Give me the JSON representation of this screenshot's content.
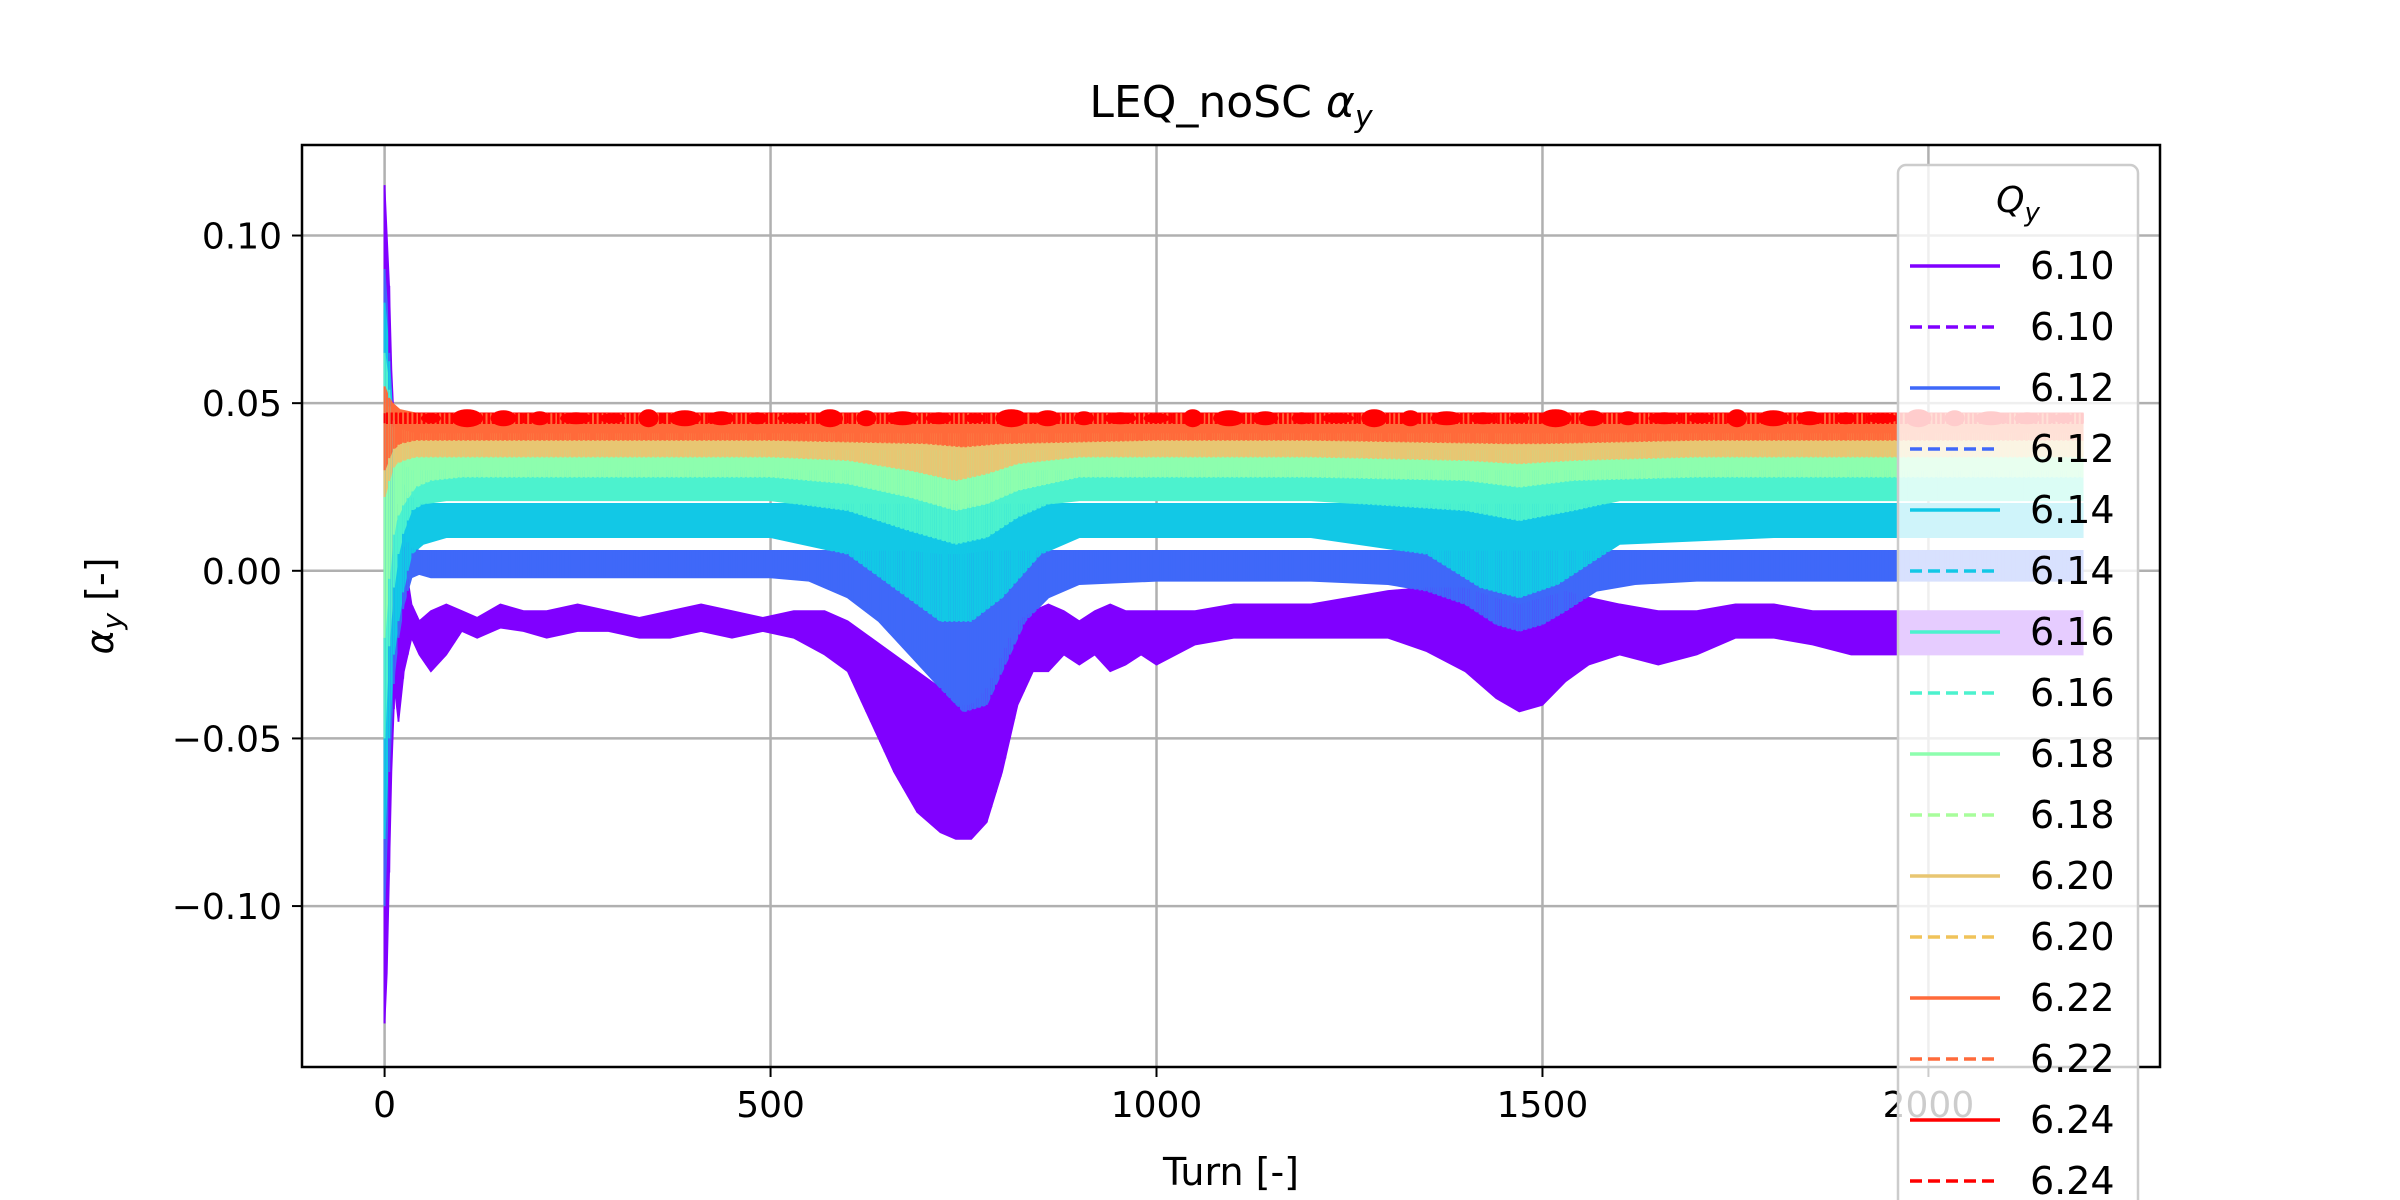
{
  "chart_data": {
    "type": "line",
    "title_text": "LEQ_noSC",
    "title_symbol": "α",
    "title_subscript": "y",
    "xlabel": "Turn [-]",
    "ylabel_symbol": "α",
    "ylabel_subscript": "y",
    "ylabel_unit": "[-]",
    "xlim": [
      -107,
      2300
    ],
    "ylim": [
      -0.148,
      0.127
    ],
    "xticks": [
      0,
      500,
      1000,
      1500,
      2000
    ],
    "xtick_labels": [
      "0",
      "500",
      "1000",
      "1500",
      "2000"
    ],
    "yticks": [
      -0.1,
      -0.05,
      0.0,
      0.05,
      0.1
    ],
    "ytick_labels": [
      "−0.10",
      "−0.05",
      "0.00",
      "0.05",
      "0.10"
    ],
    "grid": true,
    "legend": {
      "title_symbol": "Q",
      "title_subscript": "y",
      "placement": "right",
      "entries": [
        {
          "label": "6.10",
          "color": "#8000ff",
          "dash": false
        },
        {
          "label": "6.10",
          "color": "#8000ff",
          "dash": true
        },
        {
          "label": "6.12",
          "color": "#3f68f9",
          "dash": false
        },
        {
          "label": "6.12",
          "color": "#3f68f9",
          "dash": true
        },
        {
          "label": "6.14",
          "color": "#12c8e6",
          "dash": false
        },
        {
          "label": "6.14",
          "color": "#12c8e6",
          "dash": true
        },
        {
          "label": "6.16",
          "color": "#4cf2ce",
          "dash": false
        },
        {
          "label": "6.16",
          "color": "#4cf2ce",
          "dash": true
        },
        {
          "label": "6.18",
          "color": "#8dfeae",
          "dash": false
        },
        {
          "label": "6.18",
          "color": "#a8fd9c",
          "dash": true
        },
        {
          "label": "6.20",
          "color": "#e8c672",
          "dash": false
        },
        {
          "label": "6.20",
          "color": "#f0c35a",
          "dash": true
        },
        {
          "label": "6.22",
          "color": "#ff6a3a",
          "dash": false
        },
        {
          "label": "6.22",
          "color": "#ff6a3a",
          "dash": true
        },
        {
          "label": "6.24",
          "color": "#ff0000",
          "dash": false
        },
        {
          "label": "6.24",
          "color": "#ff0000",
          "dash": true
        }
      ]
    },
    "series": [
      {
        "name": "6.10",
        "color": "#8000ff",
        "x": [
          0,
          3,
          6,
          9,
          13,
          18,
          25,
          35,
          45,
          60,
          80,
          100,
          120,
          150,
          180,
          210,
          250,
          290,
          330,
          370,
          410,
          450,
          490,
          530,
          570,
          600,
          630,
          660,
          690,
          720,
          740,
          760,
          780,
          800,
          820,
          840,
          860,
          880,
          900,
          920,
          940,
          960,
          980,
          1000,
          1050,
          1100,
          1150,
          1200,
          1250,
          1300,
          1350,
          1400,
          1440,
          1470,
          1500,
          1530,
          1560,
          1600,
          1650,
          1700,
          1750,
          1800,
          1850,
          1900,
          1950,
          2000,
          2050,
          2100,
          2150,
          2200
        ],
        "lower": [
          -0.135,
          -0.12,
          -0.09,
          -0.06,
          -0.035,
          -0.045,
          -0.03,
          -0.02,
          -0.025,
          -0.03,
          -0.025,
          -0.018,
          -0.02,
          -0.017,
          -0.018,
          -0.02,
          -0.018,
          -0.018,
          -0.02,
          -0.02,
          -0.018,
          -0.02,
          -0.018,
          -0.02,
          -0.025,
          -0.03,
          -0.045,
          -0.06,
          -0.072,
          -0.078,
          -0.08,
          -0.08,
          -0.075,
          -0.06,
          -0.04,
          -0.03,
          -0.03,
          -0.025,
          -0.028,
          -0.025,
          -0.03,
          -0.028,
          -0.025,
          -0.028,
          -0.022,
          -0.02,
          -0.02,
          -0.02,
          -0.02,
          -0.02,
          -0.024,
          -0.03,
          -0.038,
          -0.042,
          -0.04,
          -0.033,
          -0.028,
          -0.025,
          -0.028,
          -0.025,
          -0.02,
          -0.02,
          -0.022,
          -0.025,
          -0.025,
          -0.025,
          -0.025,
          -0.025,
          -0.025,
          -0.025
        ],
        "upper": [
          0.115,
          0.1,
          0.085,
          0.06,
          0.04,
          0.02,
          0.005,
          -0.01,
          -0.015,
          -0.012,
          -0.01,
          -0.012,
          -0.014,
          -0.01,
          -0.012,
          -0.012,
          -0.01,
          -0.012,
          -0.014,
          -0.012,
          -0.01,
          -0.012,
          -0.014,
          -0.012,
          -0.012,
          -0.015,
          -0.02,
          -0.025,
          -0.03,
          -0.035,
          -0.04,
          -0.04,
          -0.035,
          -0.025,
          -0.015,
          -0.012,
          -0.01,
          -0.012,
          -0.015,
          -0.012,
          -0.01,
          -0.012,
          -0.012,
          -0.012,
          -0.012,
          -0.01,
          -0.01,
          -0.01,
          -0.008,
          -0.006,
          -0.005,
          -0.005,
          -0.008,
          -0.01,
          -0.008,
          -0.006,
          -0.008,
          -0.01,
          -0.012,
          -0.012,
          -0.01,
          -0.01,
          -0.012,
          -0.012,
          -0.012,
          -0.012,
          -0.012,
          -0.012,
          -0.012,
          -0.012
        ]
      },
      {
        "name": "6.12",
        "color": "#3f68f9",
        "x": [
          0,
          3,
          6,
          9,
          13,
          18,
          25,
          35,
          45,
          60,
          80,
          120,
          200,
          300,
          400,
          500,
          550,
          600,
          640,
          680,
          720,
          750,
          780,
          800,
          830,
          860,
          900,
          1000,
          1100,
          1200,
          1300,
          1350,
          1400,
          1440,
          1470,
          1500,
          1530,
          1570,
          1620,
          1700,
          1800,
          1900,
          2000,
          2100,
          2200
        ],
        "lower": [
          -0.1,
          -0.08,
          -0.06,
          -0.045,
          -0.03,
          -0.02,
          -0.01,
          -0.002,
          -0.001,
          -0.002,
          -0.002,
          -0.002,
          -0.002,
          -0.002,
          -0.002,
          -0.002,
          -0.003,
          -0.008,
          -0.015,
          -0.025,
          -0.035,
          -0.042,
          -0.04,
          -0.03,
          -0.015,
          -0.008,
          -0.004,
          -0.003,
          -0.003,
          -0.003,
          -0.004,
          -0.006,
          -0.01,
          -0.016,
          -0.018,
          -0.016,
          -0.012,
          -0.006,
          -0.004,
          -0.003,
          -0.003,
          -0.003,
          -0.003,
          -0.003,
          -0.003
        ],
        "upper": [
          0.09,
          0.08,
          0.065,
          0.05,
          0.035,
          0.02,
          0.01,
          0.007,
          0.006,
          0.006,
          0.006,
          0.006,
          0.006,
          0.006,
          0.006,
          0.006,
          0.006,
          0.006,
          0.006,
          0.006,
          0.005,
          0.005,
          0.006,
          0.006,
          0.006,
          0.006,
          0.006,
          0.006,
          0.006,
          0.006,
          0.006,
          0.006,
          0.006,
          0.006,
          0.006,
          0.006,
          0.006,
          0.006,
          0.006,
          0.006,
          0.006,
          0.006,
          0.006,
          0.006,
          0.006
        ]
      },
      {
        "name": "6.14",
        "color": "#12c8e6",
        "x": [
          0,
          4,
          8,
          12,
          18,
          25,
          35,
          50,
          80,
          150,
          300,
          500,
          600,
          660,
          720,
          760,
          800,
          850,
          900,
          1000,
          1200,
          1350,
          1420,
          1470,
          1520,
          1600,
          1800,
          2000,
          2200
        ],
        "lower": [
          -0.08,
          -0.06,
          -0.04,
          -0.025,
          -0.015,
          -0.005,
          0.005,
          0.008,
          0.01,
          0.01,
          0.01,
          0.01,
          0.005,
          -0.005,
          -0.015,
          -0.015,
          -0.008,
          0.005,
          0.01,
          0.01,
          0.01,
          0.005,
          -0.005,
          -0.008,
          -0.004,
          0.008,
          0.01,
          0.01,
          0.01
        ],
        "upper": [
          0.08,
          0.07,
          0.055,
          0.04,
          0.03,
          0.025,
          0.022,
          0.02,
          0.02,
          0.02,
          0.02,
          0.02,
          0.02,
          0.02,
          0.02,
          0.02,
          0.02,
          0.02,
          0.02,
          0.02,
          0.02,
          0.02,
          0.02,
          0.02,
          0.02,
          0.02,
          0.02,
          0.02,
          0.02
        ]
      },
      {
        "name": "6.16",
        "color": "#4cf2ce",
        "x": [
          0,
          4,
          8,
          12,
          18,
          25,
          35,
          50,
          80,
          150,
          300,
          500,
          600,
          680,
          740,
          780,
          820,
          860,
          900,
          1000,
          1200,
          1400,
          1470,
          1540,
          1600,
          1800,
          2000,
          2200
        ],
        "lower": [
          -0.05,
          -0.03,
          -0.015,
          -0.005,
          0.005,
          0.012,
          0.018,
          0.02,
          0.021,
          0.021,
          0.021,
          0.021,
          0.018,
          0.012,
          0.008,
          0.01,
          0.016,
          0.02,
          0.021,
          0.021,
          0.021,
          0.018,
          0.015,
          0.018,
          0.021,
          0.021,
          0.021,
          0.021
        ],
        "upper": [
          0.065,
          0.058,
          0.05,
          0.042,
          0.036,
          0.032,
          0.03,
          0.03,
          0.03,
          0.03,
          0.03,
          0.03,
          0.03,
          0.03,
          0.03,
          0.03,
          0.03,
          0.03,
          0.03,
          0.03,
          0.03,
          0.03,
          0.03,
          0.03,
          0.03,
          0.03,
          0.03,
          0.03
        ]
      },
      {
        "name": "6.18",
        "color": "#8dfeae",
        "x": [
          0,
          5,
          10,
          15,
          25,
          40,
          60,
          100,
          300,
          500,
          600,
          680,
          740,
          780,
          820,
          900,
          1200,
          1400,
          1470,
          1540,
          1700,
          2000,
          2200
        ],
        "lower": [
          -0.02,
          -0.005,
          0.008,
          0.015,
          0.02,
          0.025,
          0.027,
          0.028,
          0.028,
          0.028,
          0.026,
          0.022,
          0.018,
          0.02,
          0.024,
          0.028,
          0.028,
          0.027,
          0.025,
          0.027,
          0.028,
          0.028,
          0.028
        ],
        "upper": [
          0.055,
          0.05,
          0.045,
          0.04,
          0.038,
          0.036,
          0.036,
          0.036,
          0.036,
          0.036,
          0.036,
          0.036,
          0.036,
          0.036,
          0.036,
          0.036,
          0.036,
          0.036,
          0.036,
          0.036,
          0.036,
          0.036,
          0.036
        ]
      },
      {
        "name": "6.20",
        "color": "#e8c672",
        "x": [
          0,
          5,
          10,
          15,
          25,
          40,
          60,
          100,
          300,
          500,
          600,
          680,
          740,
          780,
          820,
          900,
          1200,
          1400,
          1470,
          1540,
          1700,
          2000,
          2200
        ],
        "lower": [
          0.022,
          0.026,
          0.03,
          0.032,
          0.033,
          0.034,
          0.034,
          0.034,
          0.034,
          0.034,
          0.033,
          0.03,
          0.027,
          0.029,
          0.032,
          0.034,
          0.034,
          0.033,
          0.032,
          0.033,
          0.034,
          0.034,
          0.034
        ],
        "upper": [
          0.05,
          0.048,
          0.046,
          0.043,
          0.042,
          0.041,
          0.041,
          0.041,
          0.041,
          0.041,
          0.041,
          0.041,
          0.041,
          0.041,
          0.041,
          0.041,
          0.041,
          0.041,
          0.041,
          0.041,
          0.041,
          0.041,
          0.041
        ]
      },
      {
        "name": "6.22",
        "color": "#ff6a3a",
        "x": [
          0,
          5,
          10,
          20,
          40,
          100,
          300,
          500,
          700,
          750,
          800,
          1000,
          1200,
          1450,
          1500,
          1700,
          2000,
          2200
        ],
        "lower": [
          0.03,
          0.033,
          0.036,
          0.038,
          0.039,
          0.039,
          0.039,
          0.039,
          0.038,
          0.037,
          0.038,
          0.039,
          0.039,
          0.038,
          0.038,
          0.039,
          0.039,
          0.039
        ],
        "upper": [
          0.055,
          0.052,
          0.05,
          0.048,
          0.047,
          0.047,
          0.047,
          0.047,
          0.047,
          0.047,
          0.047,
          0.047,
          0.047,
          0.047,
          0.047,
          0.047,
          0.047,
          0.047
        ]
      },
      {
        "name": "6.24",
        "color": "#ff0000",
        "x": [
          0,
          500,
          1000,
          1500,
          2000,
          2200
        ],
        "lower": [
          0.044,
          0.044,
          0.044,
          0.044,
          0.044,
          0.044
        ],
        "upper": [
          0.047,
          0.047,
          0.047,
          0.047,
          0.047,
          0.047
        ]
      }
    ]
  }
}
